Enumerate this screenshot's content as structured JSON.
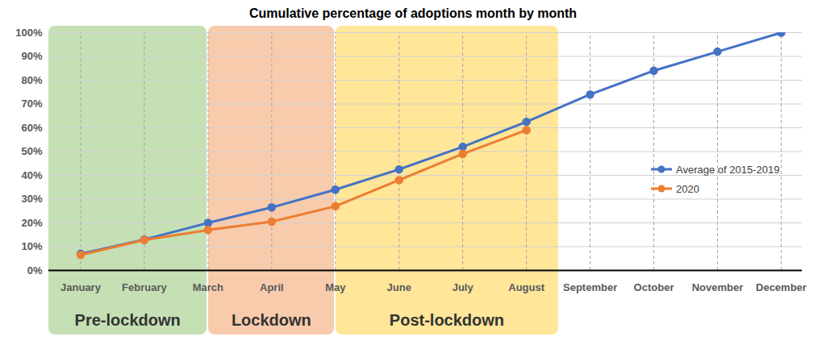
{
  "chart_data": {
    "type": "line",
    "title": "Cumulative percentage of adoptions month by month",
    "categories": [
      "January",
      "February",
      "March",
      "April",
      "May",
      "June",
      "July",
      "August",
      "September",
      "October",
      "November",
      "December"
    ],
    "series": [
      {
        "name": "Average of 2015-2019",
        "color": "#4472c4",
        "values": [
          7,
          13,
          20,
          26.5,
          34,
          42.5,
          52,
          62.5,
          74,
          84,
          92,
          100
        ]
      },
      {
        "name": "2020",
        "color": "#ed7d31",
        "values": [
          6.5,
          12.8,
          17,
          20.5,
          27,
          38,
          49,
          59,
          null,
          null,
          null,
          null
        ]
      }
    ],
    "ylim": [
      0,
      100
    ],
    "yticks": [
      {
        "value": 0,
        "label": "0%"
      },
      {
        "value": 10,
        "label": "10%"
      },
      {
        "value": 20,
        "label": "20%"
      },
      {
        "value": 30,
        "label": "30%"
      },
      {
        "value": 40,
        "label": "40%"
      },
      {
        "value": 50,
        "label": "50%"
      },
      {
        "value": 60,
        "label": "60%"
      },
      {
        "value": 70,
        "label": "70%"
      },
      {
        "value": 80,
        "label": "80%"
      },
      {
        "value": 90,
        "label": "90%"
      },
      {
        "value": 100,
        "label": "100%"
      }
    ],
    "grid": true,
    "legend": "right",
    "marker": "circle",
    "periods": [
      {
        "label": "Pre-lockdown",
        "from": "January",
        "to": "March",
        "color": "#c5e0b4"
      },
      {
        "label": "Lockdown",
        "from": "March",
        "to": "May",
        "color": "#f8cbad"
      },
      {
        "label": "Post-lockdown",
        "from": "May",
        "to": "August",
        "color": "#ffe699"
      }
    ]
  }
}
